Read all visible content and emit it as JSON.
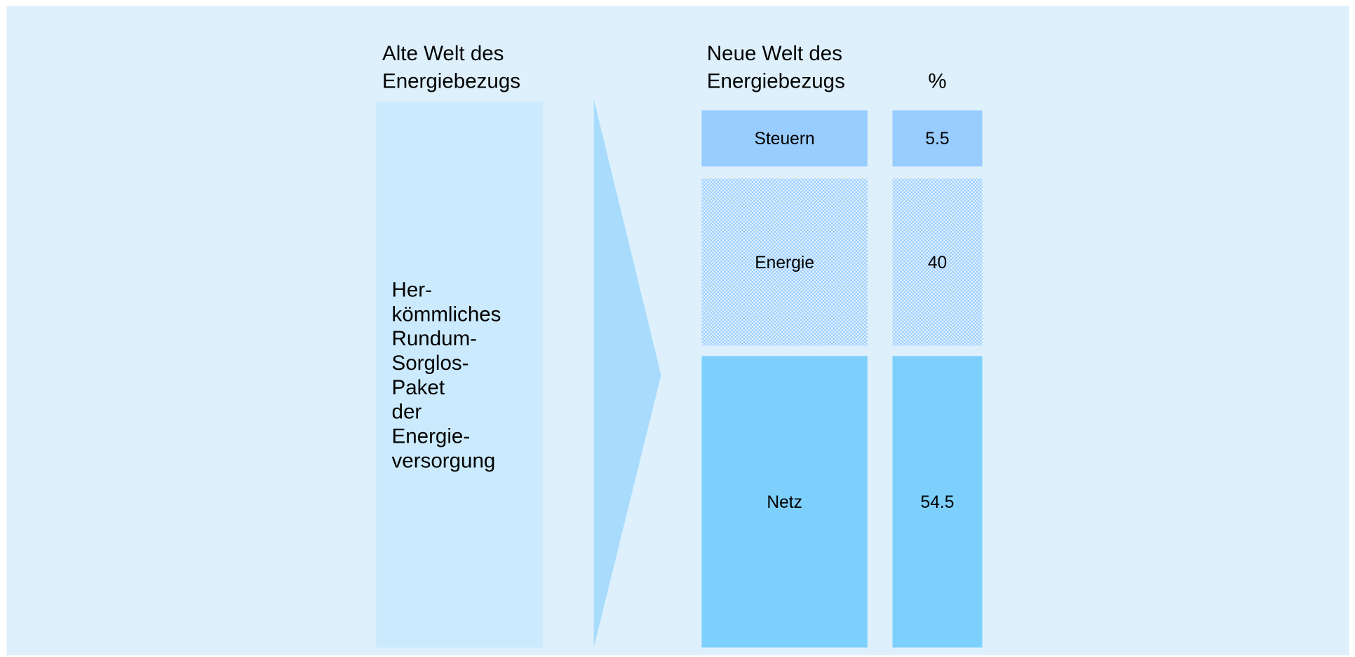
{
  "header": {
    "old_world": [
      "Alte Welt des",
      "Energiebezugs"
    ],
    "new_world": [
      "Neue Welt des",
      "Energiebezugs"
    ],
    "percent": "%"
  },
  "old_box": {
    "lines": [
      "Her-",
      "kömmliches",
      "Rundum-",
      "Sorglos-",
      "Paket",
      "der",
      "Energie-",
      "versorgung"
    ]
  },
  "segments": [
    {
      "label": "Steuern",
      "value": 5.5
    },
    {
      "label": "Energie",
      "value": 40
    },
    {
      "label": "Netz",
      "value": 54.5
    }
  ]
}
